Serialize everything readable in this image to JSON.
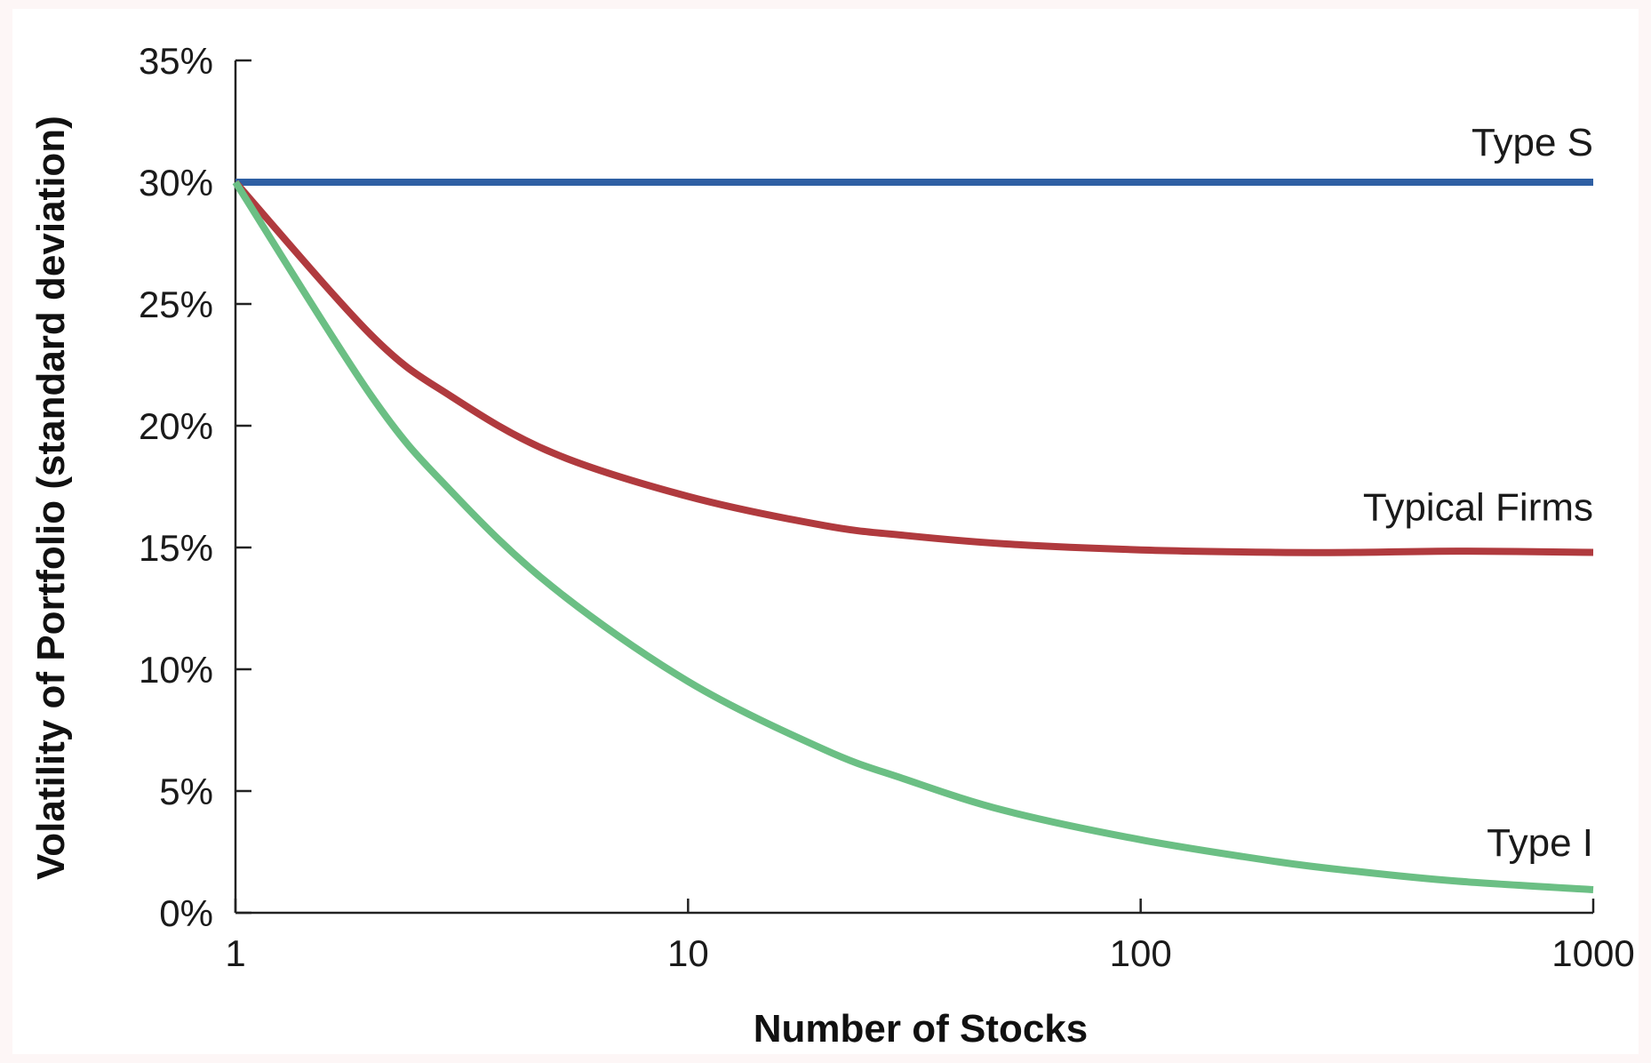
{
  "chart_data": {
    "type": "line",
    "title": "",
    "xlabel": "Number of Stocks",
    "ylabel": "Volatility of Portfolio (standard deviation)",
    "x_scale": "log",
    "xlim": [
      1,
      1000
    ],
    "ylim": [
      0,
      35
    ],
    "x_ticks": [
      "1",
      "10",
      "100",
      "1000"
    ],
    "y_ticks": [
      "0%",
      "5%",
      "10%",
      "15%",
      "20%",
      "25%",
      "30%",
      "35%"
    ],
    "grid": false,
    "legend": "none (direct labels at right end of lines)",
    "series": [
      {
        "name": "Type S",
        "color": "#2e5fa3",
        "x": [
          1,
          2,
          3,
          5,
          10,
          20,
          30,
          50,
          100,
          200,
          300,
          500,
          1000
        ],
        "y": [
          30,
          30,
          30,
          30,
          30,
          30,
          30,
          30,
          30,
          30,
          30,
          30,
          30
        ]
      },
      {
        "name": "Typical Firms",
        "color": "#b03a3e",
        "x": [
          1,
          2,
          3,
          5,
          10,
          20,
          30,
          50,
          100,
          200,
          300,
          500,
          1000
        ],
        "y": [
          30,
          23.7,
          21.2,
          18.9,
          17.1,
          15.9,
          15.5,
          15.15,
          14.9,
          14.8,
          14.8,
          14.85,
          14.8
        ]
      },
      {
        "name": "Type I",
        "color": "#6bbf84",
        "x": [
          1,
          2,
          3,
          5,
          10,
          20,
          30,
          50,
          100,
          200,
          300,
          500,
          1000
        ],
        "y": [
          30,
          21.2,
          17.3,
          13.4,
          9.5,
          6.7,
          5.5,
          4.2,
          3.0,
          2.1,
          1.7,
          1.3,
          0.95
        ]
      }
    ]
  }
}
